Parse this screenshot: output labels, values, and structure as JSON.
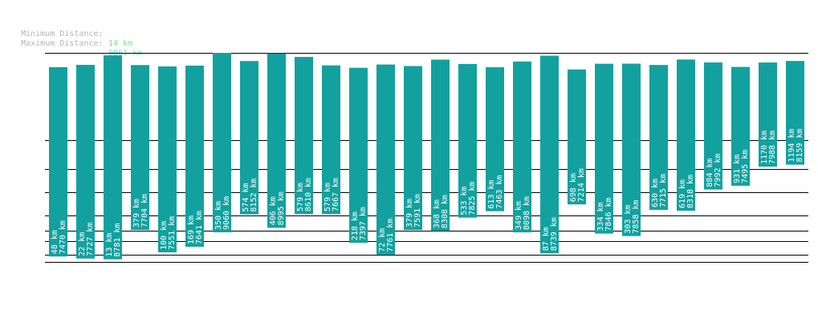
{
  "legend": {
    "min_label": "Minimum Distance:",
    "min_value": "14 km",
    "max_label": "Maximum Distance:",
    "max_value": "9061 km"
  },
  "colors": {
    "bar": "#12a19f",
    "label_text": "#ffffff",
    "legend_label": "#b4b4b4",
    "min_value": "#7fe07f",
    "max_value": "#6fe0e0",
    "gridline": "#000000"
  },
  "chart_data": {
    "type": "bar",
    "series": [
      {
        "name": "min",
        "values": [
          48,
          22,
          13,
          379,
          100,
          169,
          350,
          574,
          406,
          579,
          579,
          218,
          72,
          379,
          368,
          533,
          613,
          349,
          87,
          698,
          334,
          303,
          630,
          619,
          884,
          931,
          1170,
          1194
        ]
      },
      {
        "name": "max",
        "values": [
          7470,
          7727,
          8781,
          7704,
          7551,
          7641,
          9060,
          8152,
          8995,
          8610,
          7667,
          7397,
          7761,
          7591,
          8308,
          7825,
          7463,
          8098,
          8739,
          7214,
          7846,
          7858,
          7715,
          8318,
          7992,
          7495,
          7988,
          8159
        ]
      }
    ],
    "unit": "km",
    "range_km": [
      14,
      9061
    ]
  }
}
